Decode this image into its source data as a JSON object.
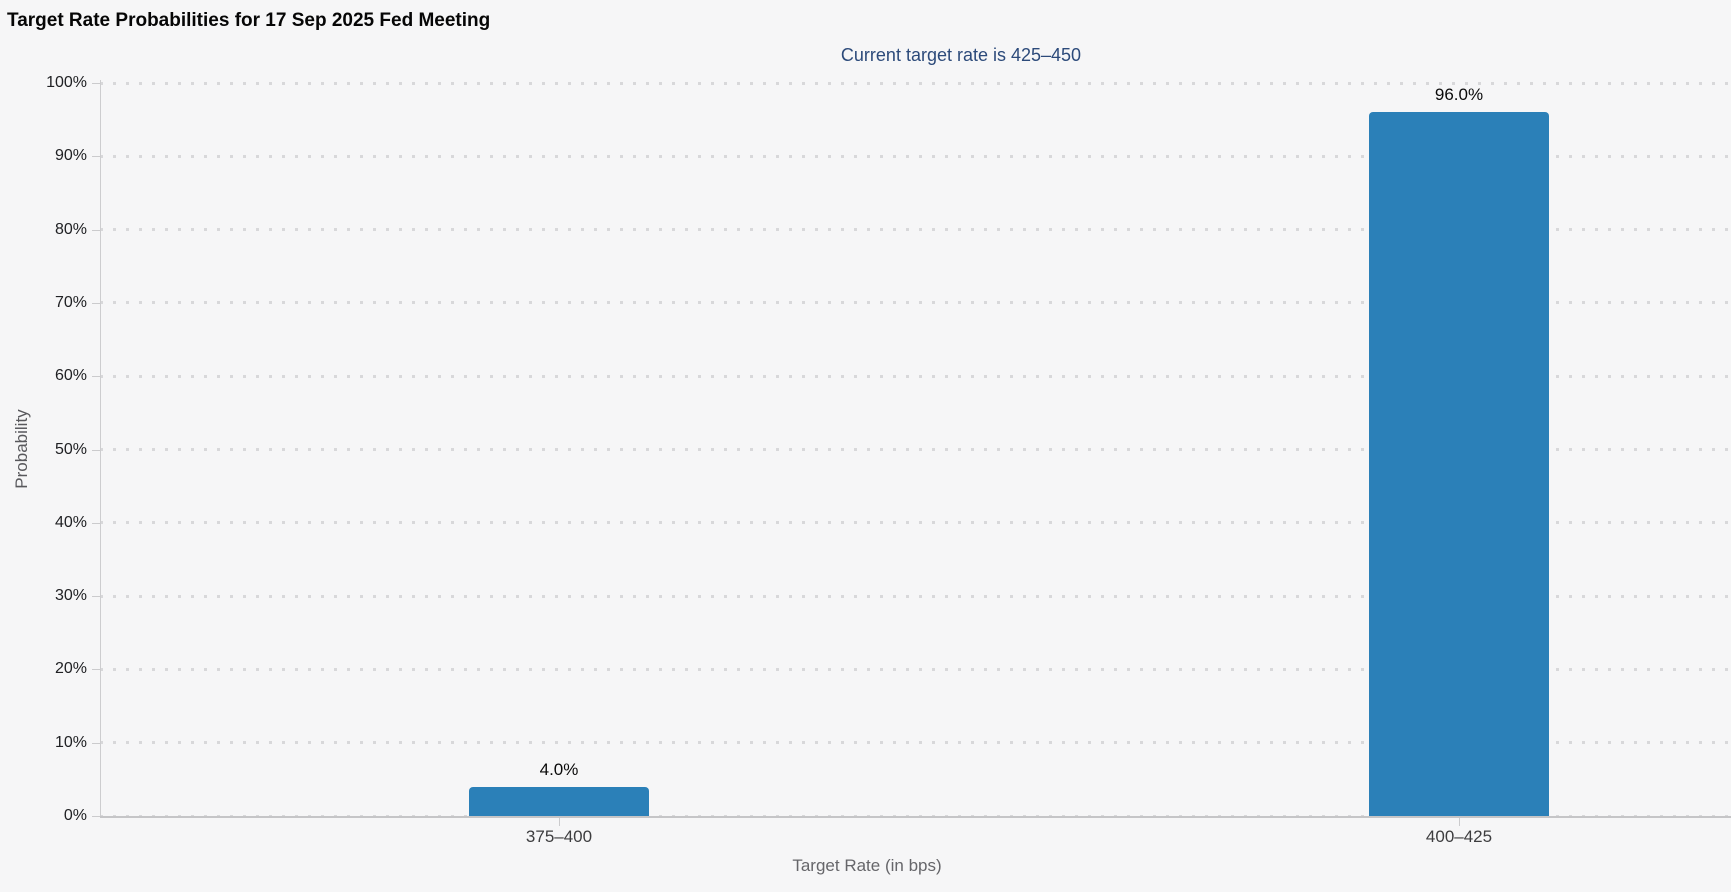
{
  "chart_data": {
    "type": "bar",
    "title": "Target Rate Probabilities for 17 Sep 2025 Fed Meeting",
    "subtitle": "Current target rate is 425–450",
    "xlabel": "Target Rate (in bps)",
    "ylabel": "Probability",
    "categories": [
      "375–400",
      "400–425"
    ],
    "values": [
      4.0,
      96.0
    ],
    "value_labels": [
      "4.0%",
      "96.0%"
    ],
    "ylim": [
      0,
      100
    ],
    "ytick_step": 10,
    "ytick_labels": [
      "0%",
      "10%",
      "20%",
      "30%",
      "40%",
      "50%",
      "60%",
      "70%",
      "80%",
      "90%",
      "100%"
    ],
    "grid": "horizontal-dotted",
    "legend": "none",
    "bar_color": "#2b80b8"
  },
  "colors": {
    "background": "#f6f6f7",
    "bar": "#2b80b8",
    "subtitle_text": "#2c4a7a",
    "gridline": "#d8d8da",
    "axis_line": "#c5c5c7"
  }
}
